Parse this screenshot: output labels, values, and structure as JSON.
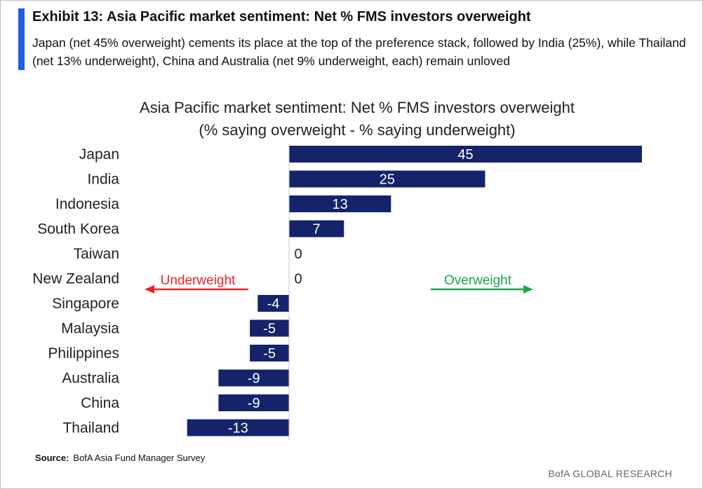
{
  "exhibit": {
    "title": "Exhibit 13: Asia Pacific market sentiment: Net % FMS investors overweight",
    "subtitle": "Japan (net 45% overweight) cements its place at the top of the preference stack, followed by India (25%), while Thailand (net 13% underweight), China and Australia (net 9% underweight, each) remain unloved"
  },
  "chart_data": {
    "type": "bar",
    "orientation": "horizontal",
    "title": "Asia Pacific market sentiment:  Net % FMS investors overweight",
    "subtitle": "(% saying overweight - % saying underweight)",
    "categories": [
      "Japan",
      "India",
      "Indonesia",
      "South Korea",
      "Taiwan",
      "New Zealand",
      "Singapore",
      "Malaysia",
      "Philippines",
      "Australia",
      "China",
      "Thailand"
    ],
    "values": [
      45,
      25,
      13,
      7,
      0,
      0,
      -4,
      -5,
      -5,
      -9,
      -9,
      -13
    ],
    "xlim": [
      -13,
      45
    ],
    "bar_color": "#15236b",
    "data_labels": true,
    "annotations": [
      {
        "text": "Underweight",
        "direction": "left",
        "color": "#e8252b"
      },
      {
        "text": "Overweight",
        "direction": "right",
        "color": "#1aa64a"
      }
    ]
  },
  "source": {
    "label": "Source:",
    "text": "BofA Asia Fund Manager Survey"
  },
  "brand": "BofA GLOBAL RESEARCH"
}
